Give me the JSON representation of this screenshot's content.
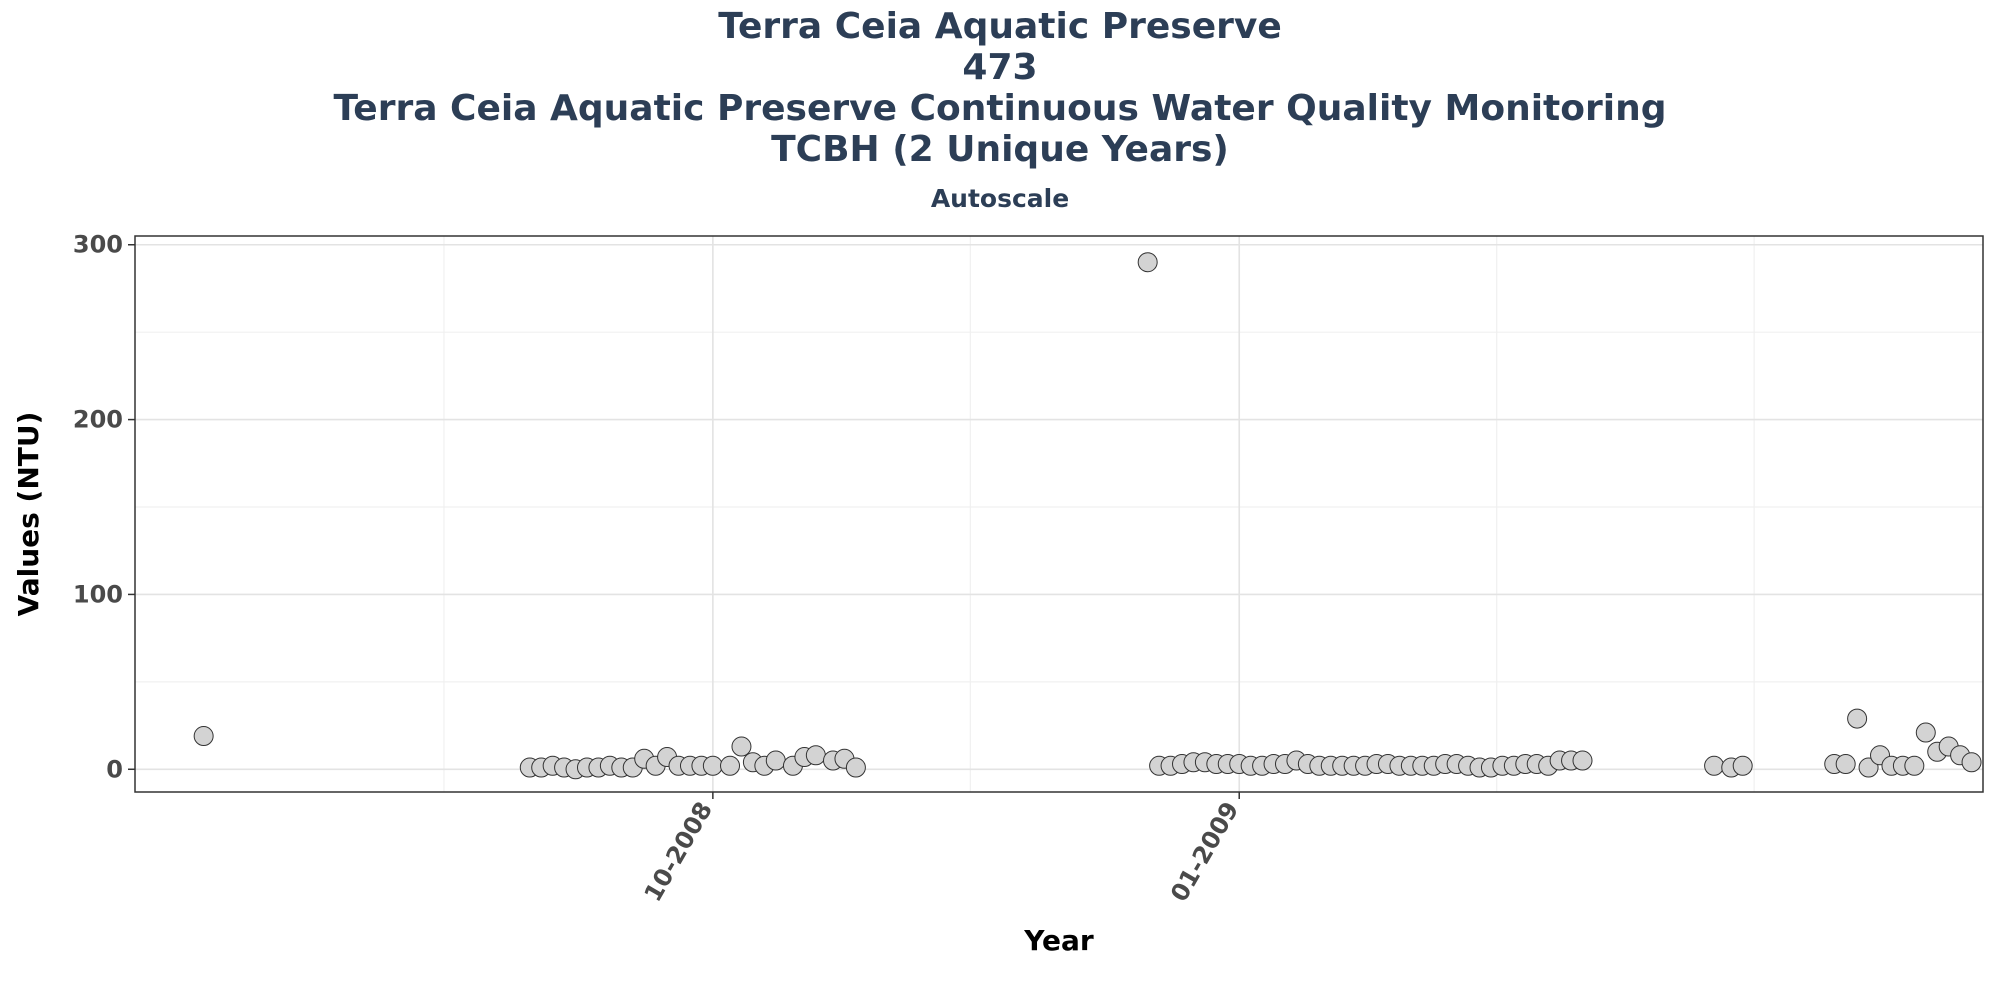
{
  "chart_data": {
    "type": "scatter",
    "title_lines": [
      "Terra Ceia Aquatic Preserve",
      "473",
      "Terra Ceia Aquatic Preserve Continuous Water Quality Monitoring",
      "TCBH (2 Unique Years)"
    ],
    "subtitle": "Autoscale",
    "xlabel": "Year",
    "ylabel": "Values (NTU)",
    "ylim": [
      -13,
      305
    ],
    "xlim": [
      "2008-06-22",
      "2009-05-11"
    ],
    "yticks": [
      0,
      100,
      200,
      300
    ],
    "xticks": [
      {
        "date": "2008-10-01",
        "label": "10-2008"
      },
      {
        "date": "2009-01-01",
        "label": "01-2009"
      }
    ],
    "x_minor_gridlines": [
      "2008-08-15",
      "2008-11-15",
      "2009-02-15",
      "2009-04-01"
    ],
    "grid": true,
    "point_fill": "#d3d3d3",
    "point_stroke": "#333333",
    "points": [
      {
        "x": "2008-07-04",
        "y": 19
      },
      {
        "x": "2008-08-30",
        "y": 1
      },
      {
        "x": "2008-09-01",
        "y": 1
      },
      {
        "x": "2008-09-03",
        "y": 2
      },
      {
        "x": "2008-09-05",
        "y": 1
      },
      {
        "x": "2008-09-07",
        "y": 0
      },
      {
        "x": "2008-09-09",
        "y": 1
      },
      {
        "x": "2008-09-11",
        "y": 1
      },
      {
        "x": "2008-09-13",
        "y": 2
      },
      {
        "x": "2008-09-15",
        "y": 1
      },
      {
        "x": "2008-09-17",
        "y": 1
      },
      {
        "x": "2008-09-19",
        "y": 6
      },
      {
        "x": "2008-09-21",
        "y": 2
      },
      {
        "x": "2008-09-23",
        "y": 7
      },
      {
        "x": "2008-09-25",
        "y": 2
      },
      {
        "x": "2008-09-27",
        "y": 2
      },
      {
        "x": "2008-09-29",
        "y": 2
      },
      {
        "x": "2008-10-01",
        "y": 2
      },
      {
        "x": "2008-10-04",
        "y": 2
      },
      {
        "x": "2008-10-06",
        "y": 13
      },
      {
        "x": "2008-10-08",
        "y": 4
      },
      {
        "x": "2008-10-10",
        "y": 2
      },
      {
        "x": "2008-10-12",
        "y": 5
      },
      {
        "x": "2008-10-15",
        "y": 2
      },
      {
        "x": "2008-10-17",
        "y": 7
      },
      {
        "x": "2008-10-19",
        "y": 8
      },
      {
        "x": "2008-10-22",
        "y": 5
      },
      {
        "x": "2008-10-24",
        "y": 6
      },
      {
        "x": "2008-10-26",
        "y": 1
      },
      {
        "x": "2008-12-16",
        "y": 290
      },
      {
        "x": "2008-12-18",
        "y": 2
      },
      {
        "x": "2008-12-20",
        "y": 2
      },
      {
        "x": "2008-12-22",
        "y": 3
      },
      {
        "x": "2008-12-24",
        "y": 4
      },
      {
        "x": "2008-12-26",
        "y": 4
      },
      {
        "x": "2008-12-28",
        "y": 3
      },
      {
        "x": "2008-12-30",
        "y": 3
      },
      {
        "x": "2009-01-01",
        "y": 3
      },
      {
        "x": "2009-01-03",
        "y": 2
      },
      {
        "x": "2009-01-05",
        "y": 2
      },
      {
        "x": "2009-01-07",
        "y": 3
      },
      {
        "x": "2009-01-09",
        "y": 3
      },
      {
        "x": "2009-01-11",
        "y": 5
      },
      {
        "x": "2009-01-13",
        "y": 3
      },
      {
        "x": "2009-01-15",
        "y": 2
      },
      {
        "x": "2009-01-17",
        "y": 2
      },
      {
        "x": "2009-01-19",
        "y": 2
      },
      {
        "x": "2009-01-21",
        "y": 2
      },
      {
        "x": "2009-01-23",
        "y": 2
      },
      {
        "x": "2009-01-25",
        "y": 3
      },
      {
        "x": "2009-01-27",
        "y": 3
      },
      {
        "x": "2009-01-29",
        "y": 2
      },
      {
        "x": "2009-01-31",
        "y": 2
      },
      {
        "x": "2009-02-02",
        "y": 2
      },
      {
        "x": "2009-02-04",
        "y": 2
      },
      {
        "x": "2009-02-06",
        "y": 3
      },
      {
        "x": "2009-02-08",
        "y": 3
      },
      {
        "x": "2009-02-10",
        "y": 2
      },
      {
        "x": "2009-02-12",
        "y": 1
      },
      {
        "x": "2009-02-14",
        "y": 1
      },
      {
        "x": "2009-02-16",
        "y": 2
      },
      {
        "x": "2009-02-18",
        "y": 2
      },
      {
        "x": "2009-02-20",
        "y": 3
      },
      {
        "x": "2009-02-22",
        "y": 3
      },
      {
        "x": "2009-02-24",
        "y": 2
      },
      {
        "x": "2009-02-26",
        "y": 5
      },
      {
        "x": "2009-02-28",
        "y": 5
      },
      {
        "x": "2009-03-02",
        "y": 5
      },
      {
        "x": "2009-03-25",
        "y": 2
      },
      {
        "x": "2009-03-28",
        "y": 1
      },
      {
        "x": "2009-03-30",
        "y": 2
      },
      {
        "x": "2009-04-15",
        "y": 3
      },
      {
        "x": "2009-04-17",
        "y": 3
      },
      {
        "x": "2009-04-19",
        "y": 29
      },
      {
        "x": "2009-04-21",
        "y": 1
      },
      {
        "x": "2009-04-23",
        "y": 8
      },
      {
        "x": "2009-04-25",
        "y": 2
      },
      {
        "x": "2009-04-27",
        "y": 2
      },
      {
        "x": "2009-04-29",
        "y": 2
      },
      {
        "x": "2009-05-01",
        "y": 21
      },
      {
        "x": "2009-05-03",
        "y": 10
      },
      {
        "x": "2009-05-05",
        "y": 13
      },
      {
        "x": "2009-05-07",
        "y": 8
      },
      {
        "x": "2009-05-09",
        "y": 4
      }
    ]
  }
}
